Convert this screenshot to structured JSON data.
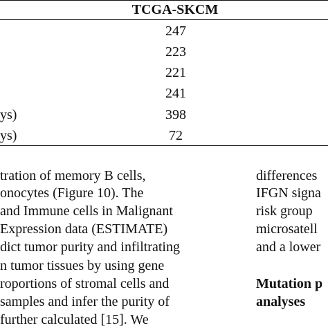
{
  "table": {
    "column_header": "TCGA-SKCM",
    "rows": [
      {
        "label": "",
        "value": "247"
      },
      {
        "label": "",
        "value": "223"
      },
      {
        "label": "",
        "value": "221"
      },
      {
        "label": "",
        "value": "241"
      },
      {
        "label": "ys)",
        "value": "398"
      },
      {
        "label": "ys)",
        "value": "72"
      }
    ]
  },
  "left_column": {
    "lines": [
      "tration  of  memory  B  cells,",
      "onocytes  (Figure  10).  The",
      "and Immune cells in Malignant",
      "Expression data (ESTIMATE)",
      "dict tumor purity and infiltrating",
      "n tumor tissues by using gene",
      "roportions of stromal cells and",
      "samples and infer the purity of",
      "further  calculated  [15].  We"
    ]
  },
  "right_column": {
    "lines": [
      "differences",
      "IFGN signa",
      "risk  group",
      "microsatell",
      "and a lower"
    ],
    "heading_lines": [
      "Mutation p",
      "analyses"
    ]
  }
}
